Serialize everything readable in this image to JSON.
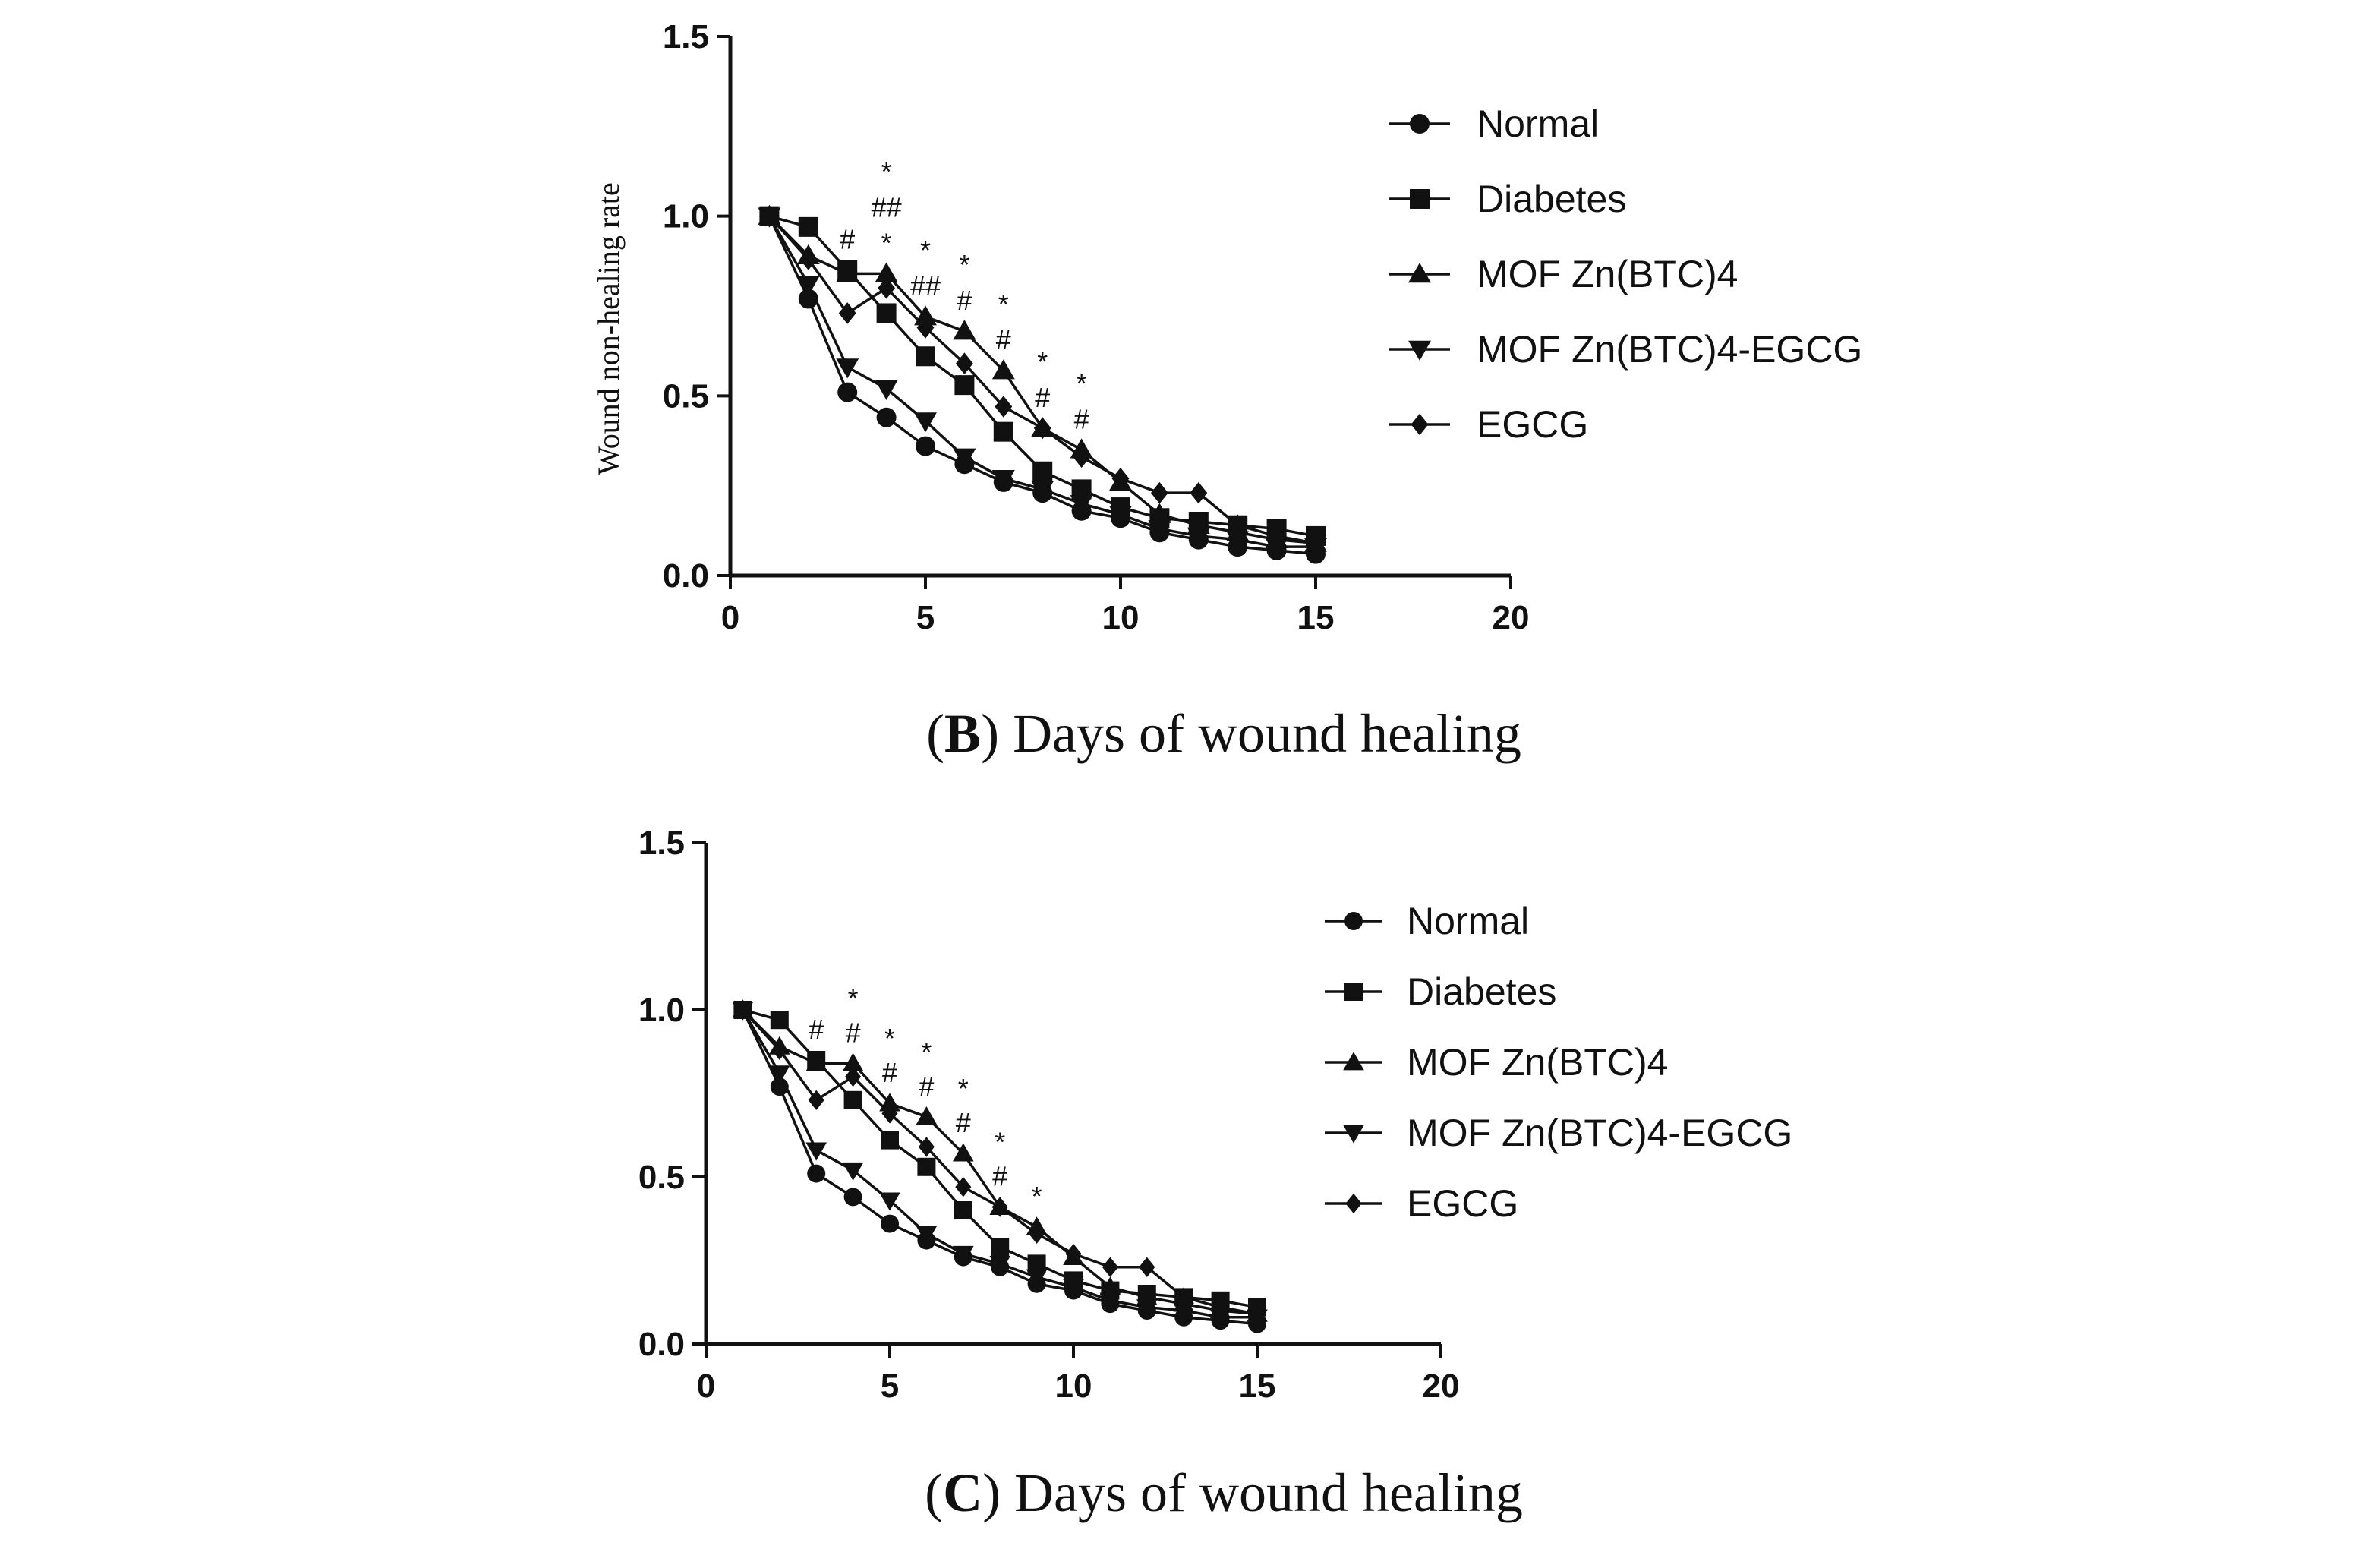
{
  "chart_data": [
    {
      "type": "line",
      "panel": "B",
      "caption_letter": "B",
      "caption_text": "Days of wound healing",
      "title": "",
      "xlabel": "",
      "ylabel": "Wound non-healing rate",
      "xlim": [
        0,
        20
      ],
      "ylim": [
        0,
        1.5
      ],
      "xticks": [
        0,
        5,
        10,
        15,
        20
      ],
      "yticks": [
        0.0,
        0.5,
        1.0,
        1.5
      ],
      "ytick_labels": [
        "0.0",
        "0.5",
        "1.0",
        "1.5"
      ],
      "x": [
        1,
        2,
        3,
        4,
        5,
        6,
        7,
        8,
        9,
        10,
        11,
        12,
        13,
        14,
        15
      ],
      "series": [
        {
          "name": "Normal",
          "marker": "circle",
          "values": [
            1.0,
            0.77,
            0.51,
            0.44,
            0.36,
            0.31,
            0.26,
            0.23,
            0.18,
            0.16,
            0.12,
            0.1,
            0.08,
            0.07,
            0.06
          ]
        },
        {
          "name": "Diabetes",
          "marker": "square",
          "values": [
            1.0,
            0.97,
            0.85,
            0.73,
            0.61,
            0.53,
            0.4,
            0.29,
            0.24,
            0.19,
            0.16,
            0.15,
            0.14,
            0.13,
            0.11
          ]
        },
        {
          "name": "MOF Zn(BTC)4",
          "marker": "triangle-up",
          "values": [
            1.0,
            0.89,
            0.84,
            0.84,
            0.72,
            0.68,
            0.57,
            0.41,
            0.35,
            0.26,
            0.17,
            0.14,
            0.12,
            0.1,
            0.09
          ]
        },
        {
          "name": "MOF Zn(BTC)4-EGCG",
          "marker": "triangle-down",
          "values": [
            1.0,
            0.81,
            0.58,
            0.52,
            0.43,
            0.33,
            0.27,
            0.24,
            0.2,
            0.17,
            0.13,
            0.11,
            0.1,
            0.08,
            0.08
          ]
        },
        {
          "name": "EGCG",
          "marker": "diamond",
          "values": [
            1.0,
            0.88,
            0.73,
            0.8,
            0.69,
            0.59,
            0.47,
            0.41,
            0.33,
            0.27,
            0.23,
            0.23,
            0.14,
            0.11,
            0.09
          ]
        }
      ],
      "annotations": [
        {
          "day": 3,
          "lines": [
            "#"
          ]
        },
        {
          "day": 4,
          "lines": [
            "*",
            "##",
            "*"
          ]
        },
        {
          "day": 5,
          "lines": [
            "*",
            "##"
          ]
        },
        {
          "day": 6,
          "lines": [
            "*",
            "#"
          ]
        },
        {
          "day": 7,
          "lines": [
            "*",
            "#"
          ]
        },
        {
          "day": 8,
          "lines": [
            "*",
            "#"
          ]
        },
        {
          "day": 9,
          "lines": [
            "*",
            "#"
          ]
        }
      ],
      "legend_position": "right"
    },
    {
      "type": "line",
      "panel": "C",
      "caption_letter": "C",
      "caption_text": "Days of wound healing",
      "title": "",
      "xlabel": "",
      "ylabel": "",
      "xlim": [
        0,
        20
      ],
      "ylim": [
        0,
        1.5
      ],
      "xticks": [
        0,
        5,
        10,
        15,
        20
      ],
      "yticks": [
        0.0,
        0.5,
        1.0,
        1.5
      ],
      "ytick_labels": [
        "0.0",
        "0.5",
        "1.0",
        "1.5"
      ],
      "x": [
        1,
        2,
        3,
        4,
        5,
        6,
        7,
        8,
        9,
        10,
        11,
        12,
        13,
        14,
        15
      ],
      "series": [
        {
          "name": "Normal",
          "marker": "circle",
          "values": [
            1.0,
            0.77,
            0.51,
            0.44,
            0.36,
            0.31,
            0.26,
            0.23,
            0.18,
            0.16,
            0.12,
            0.1,
            0.08,
            0.07,
            0.06
          ]
        },
        {
          "name": "Diabetes",
          "marker": "square",
          "values": [
            1.0,
            0.97,
            0.85,
            0.73,
            0.61,
            0.53,
            0.4,
            0.29,
            0.24,
            0.19,
            0.16,
            0.15,
            0.14,
            0.13,
            0.11
          ]
        },
        {
          "name": "MOF Zn(BTC)4",
          "marker": "triangle-up",
          "values": [
            1.0,
            0.89,
            0.84,
            0.84,
            0.72,
            0.68,
            0.57,
            0.41,
            0.35,
            0.26,
            0.17,
            0.14,
            0.12,
            0.1,
            0.09
          ]
        },
        {
          "name": "MOF Zn(BTC)4-EGCG",
          "marker": "triangle-down",
          "values": [
            1.0,
            0.81,
            0.58,
            0.52,
            0.43,
            0.33,
            0.27,
            0.24,
            0.2,
            0.17,
            0.13,
            0.11,
            0.1,
            0.08,
            0.08
          ]
        },
        {
          "name": "EGCG",
          "marker": "diamond",
          "values": [
            1.0,
            0.88,
            0.73,
            0.8,
            0.69,
            0.59,
            0.47,
            0.41,
            0.33,
            0.27,
            0.23,
            0.23,
            0.14,
            0.11,
            0.09
          ]
        }
      ],
      "annotations": [
        {
          "day": 3,
          "lines": [
            "#"
          ]
        },
        {
          "day": 4,
          "lines": [
            "*",
            "#"
          ]
        },
        {
          "day": 5,
          "lines": [
            "*",
            "#"
          ]
        },
        {
          "day": 6,
          "lines": [
            "*",
            "#"
          ]
        },
        {
          "day": 7,
          "lines": [
            "*",
            "#"
          ]
        },
        {
          "day": 8,
          "lines": [
            "*",
            "#"
          ]
        },
        {
          "day": 9,
          "lines": [
            "*"
          ]
        }
      ],
      "legend_position": "right"
    }
  ]
}
